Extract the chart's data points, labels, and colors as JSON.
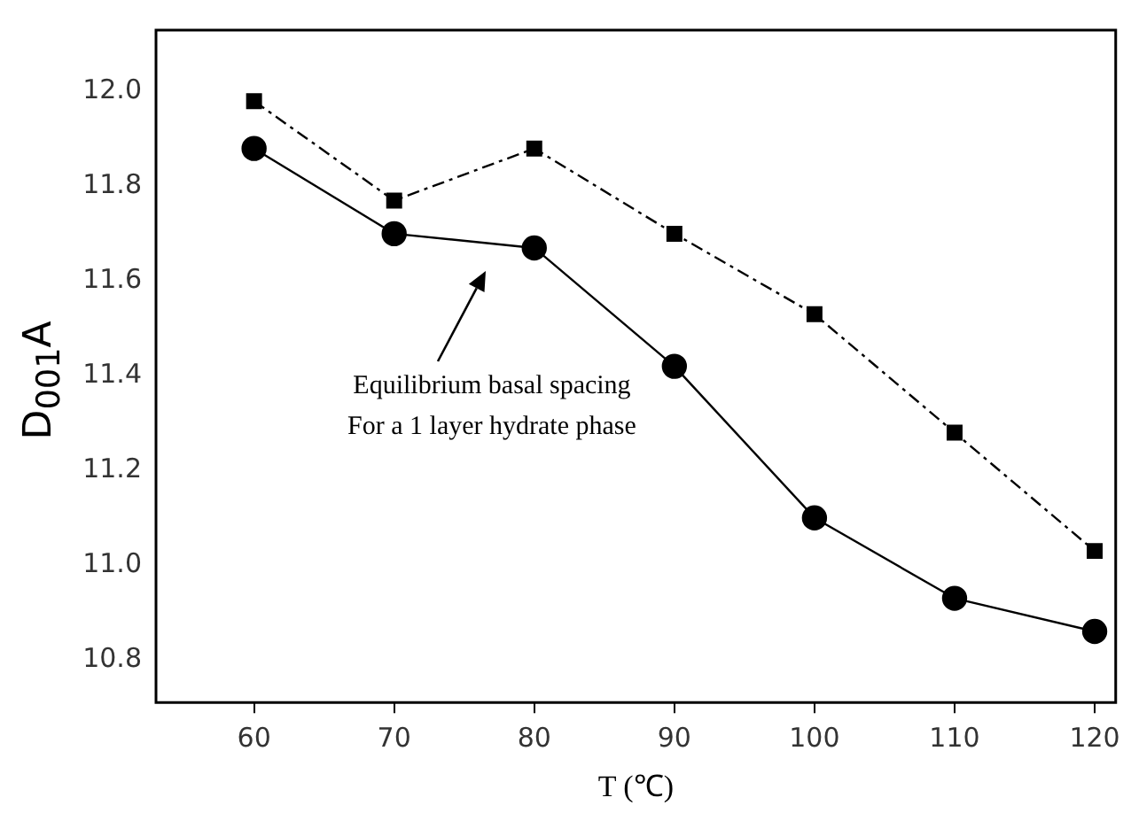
{
  "chart_data": {
    "type": "line",
    "xlabel": "T (℃)",
    "ylabel": "D$_{001}$A",
    "x": [
      60,
      70,
      80,
      90,
      100,
      110,
      120
    ],
    "series": [
      {
        "color": "#000000",
        "marker": "square",
        "line_style": "dashed",
        "values": [
          11.98,
          11.77,
          11.88,
          11.7,
          11.53,
          11.28,
          11.03
        ]
      },
      {
        "color": "#000000",
        "marker": "circle",
        "line_style": "solid",
        "values": [
          11.88,
          11.7,
          11.67,
          11.42,
          11.1,
          10.93,
          10.86
        ]
      }
    ],
    "xlim": [
      53,
      121.5
    ],
    "xticks": [
      60,
      70,
      80,
      90,
      100,
      110,
      120
    ],
    "ylim": [
      10.71,
      12.13
    ],
    "yticks": [
      {
        "value": 10.8,
        "label": "10.8"
      },
      {
        "value": 11.0,
        "label": "11.0"
      },
      {
        "value": 11.2,
        "label": "11.2"
      },
      {
        "value": 11.4,
        "label": "11.4"
      },
      {
        "value": 11.6,
        "label": "11.6"
      },
      {
        "value": 11.8,
        "label": "11.8"
      },
      {
        "value": 12.0,
        "label": "12.0"
      }
    ],
    "grid": false,
    "legend": false,
    "annotations": [
      "Equilibrium basal spacing\nFor a 1 layer hydrate phase"
    ]
  }
}
